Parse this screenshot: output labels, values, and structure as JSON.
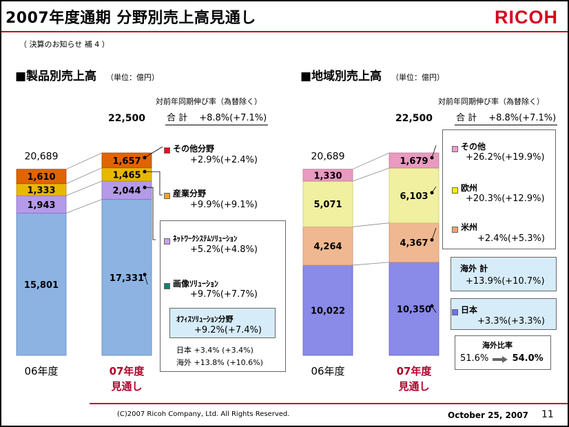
{
  "title": "2007年度通期 分野別売上高見通し",
  "logo": "RICOH",
  "subtitle": "（ 決算のお知らせ 補 4 ）",
  "footer": {
    "copyright": "(C)2007 Ricoh Company, Ltd. All Rights Reserved.",
    "date": "October 25, 2007",
    "page": "11"
  },
  "colors": {
    "accent_red": "#cc0000",
    "logo_red": "#d6001c",
    "year07_text": "#b0002a",
    "box_fill": "#d7ecf9"
  },
  "left": {
    "title": "■製品別売上高",
    "unit": "（単位：億円）",
    "growth_header": "対前年同期伸び率（為替除く）",
    "total_label": "合 計",
    "total_rate": "+8.8%(+7.1%)",
    "legend": [
      {
        "label": "その他分野",
        "rate": "+2.9%(+2.4%)",
        "color": "#e8101c"
      },
      {
        "label": "産業分野",
        "rate": "+9.9%(+9.1%)",
        "color": "#f5a030"
      },
      {
        "label": "ﾈｯﾄﾜｰｸｼｽﾃﾑｿﾘｭｰｼｮﾝ",
        "rate": "+5.2%(+4.8%)",
        "color": "#c8a0f0"
      },
      {
        "label": "画像ｿﾘｭｰｼｮﾝ",
        "rate": "+9.7%(+7.7%)",
        "color": "#108070"
      }
    ],
    "office_box": {
      "label": "ｵﾌｨｽｿﾘｭｰｼｮﾝ分野",
      "rate": "+9.2%(+7.4%)",
      "japan": "日本 +3.4% (+3.4%)",
      "overseas": "海外 +13.8% (+10.6%)"
    }
  },
  "right": {
    "title": "■地域別売上高",
    "unit": "（単位：億円）",
    "growth_header": "対前年同期伸び率（為替除く）",
    "total_label": "合 計",
    "total_rate": "+8.8%(+7.1%)",
    "legend": [
      {
        "label": "その他",
        "rate": "+26.2%(+19.9%)",
        "color": "#f59ad0"
      },
      {
        "label": "欧州",
        "rate": "+20.3%(+12.9%)",
        "color": "#ffee00"
      },
      {
        "label": "米州",
        "rate": "+2.4%(+5.3%)",
        "color": "#f5a070"
      },
      {
        "label": "日本",
        "rate": "+3.3%(+3.3%)",
        "color": "#7070f0"
      }
    ],
    "overseas_box": {
      "label": "海外 計",
      "rate": "+13.9%(+10.7%)"
    },
    "ratio_box": {
      "label": "海外比率",
      "from": "51.6%",
      "to": "54.0%"
    }
  },
  "chart_data": [
    {
      "type": "bar",
      "stacked": true,
      "title": "製品別売上高",
      "unit": "億円",
      "categories": [
        "06年度",
        "07年度 見通し"
      ],
      "totals": [
        "20,689",
        "22,500"
      ],
      "series": [
        {
          "name": "画像ｿﾘｭｰｼｮﾝ",
          "values": [
            15801,
            17331
          ],
          "labels": [
            "15,801",
            "17,331"
          ],
          "color": "#8db3e2",
          "edge": "#5a86c0"
        },
        {
          "name": "ﾈｯﾄﾜｰｸｼｽﾃﾑｿﾘｭｰｼｮﾝ",
          "values": [
            1943,
            2044
          ],
          "labels": [
            "1,943",
            "2,044"
          ],
          "color": "#b49ae8",
          "edge": "#8a6cc8"
        },
        {
          "name": "産業分野",
          "values": [
            1333,
            1465
          ],
          "labels": [
            "1,333",
            "1,465"
          ],
          "color": "#e8b800",
          "edge": "#b88e00"
        },
        {
          "name": "その他分野",
          "values": [
            1610,
            1657
          ],
          "labels": [
            "1,610",
            "1,657"
          ],
          "color": "#e06400",
          "edge": "#b04800"
        }
      ]
    },
    {
      "type": "bar",
      "stacked": true,
      "title": "地域別売上高",
      "unit": "億円",
      "categories": [
        "06年度",
        "07年度 見通し"
      ],
      "totals": [
        "20,689",
        "22,500"
      ],
      "series": [
        {
          "name": "日本",
          "values": [
            10022,
            10350
          ],
          "labels": [
            "10,022",
            "10,350"
          ],
          "color": "#8a8ae8",
          "edge": "#6060c0"
        },
        {
          "name": "米州",
          "values": [
            4264,
            4367
          ],
          "labels": [
            "4,264",
            "4,367"
          ],
          "color": "#f0b890",
          "edge": "#c89070"
        },
        {
          "name": "欧州",
          "values": [
            5071,
            6103
          ],
          "labels": [
            "5,071",
            "6,103"
          ],
          "color": "#f0f0a0",
          "edge": "#c8c878"
        },
        {
          "name": "その他",
          "values": [
            1330,
            1679
          ],
          "labels": [
            "1,330",
            "1,679"
          ],
          "color": "#e89ac0",
          "edge": "#c07898"
        }
      ]
    }
  ]
}
